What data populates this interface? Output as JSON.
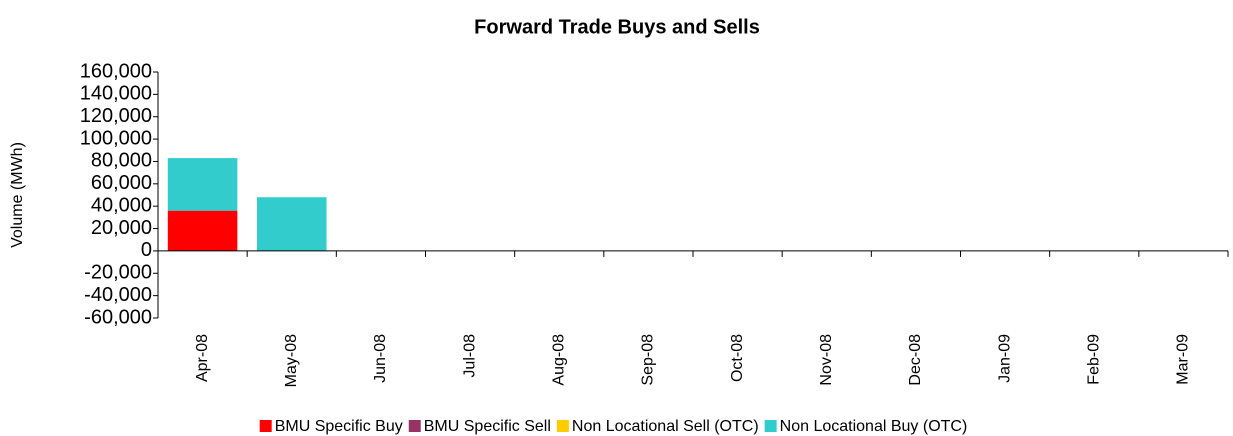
{
  "chart_data": {
    "type": "bar",
    "stacked": true,
    "title": "Forward Trade Buys and Sells",
    "y_label": "Volume (MWh)",
    "categories": [
      "Apr-08",
      "May-08",
      "Jun-08",
      "Jul-08",
      "Aug-08",
      "Sep-08",
      "Oct-08",
      "Nov-08",
      "Dec-08",
      "Jan-09",
      "Feb-09",
      "Mar-09"
    ],
    "series": [
      {
        "name": "BMU Specific Buy",
        "color": "#ff0000",
        "values": [
          36000,
          0,
          0,
          0,
          0,
          0,
          0,
          0,
          0,
          0,
          0,
          0
        ]
      },
      {
        "name": "BMU Specific Sell",
        "color": "#993366",
        "values": [
          0,
          0,
          0,
          0,
          0,
          0,
          0,
          0,
          0,
          0,
          0,
          0
        ]
      },
      {
        "name": "Non Locational Sell (OTC)",
        "color": "#ffcc00",
        "values": [
          0,
          0,
          0,
          0,
          0,
          0,
          0,
          0,
          0,
          0,
          0,
          0
        ]
      },
      {
        "name": "Non Locational Buy (OTC)",
        "color": "#33cccc",
        "values": [
          47000,
          48000,
          0,
          0,
          0,
          0,
          0,
          0,
          0,
          0,
          0,
          0
        ]
      }
    ],
    "ylim": [
      -60000,
      160000
    ],
    "yticks": [
      {
        "value": -60000,
        "label": "-60,000"
      },
      {
        "value": -40000,
        "label": "-40,000"
      },
      {
        "value": -20000,
        "label": "-20,000"
      },
      0,
      {
        "value": 20000,
        "label": "20,000"
      },
      {
        "value": 40000,
        "label": "40,000"
      },
      {
        "value": 60000,
        "label": "60,000"
      },
      {
        "value": 80000,
        "label": "80,000"
      },
      {
        "value": 100000,
        "label": "100,000"
      },
      {
        "value": 120000,
        "label": "120,000"
      },
      {
        "value": 140000,
        "label": "140,000"
      },
      {
        "value": 160000,
        "label": "160,000"
      }
    ],
    "grid": false,
    "legend": "bottom"
  }
}
